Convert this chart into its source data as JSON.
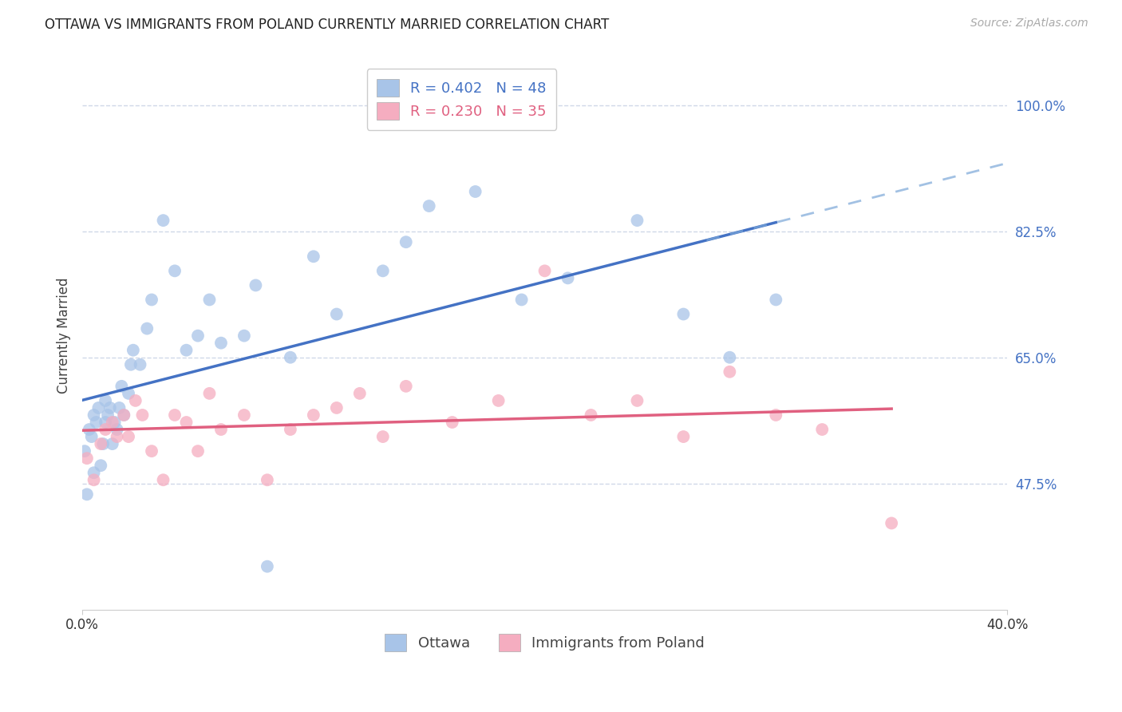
{
  "title": "OTTAWA VS IMMIGRANTS FROM POLAND CURRENTLY MARRIED CORRELATION CHART",
  "source": "Source: ZipAtlas.com",
  "ylabel": "Currently Married",
  "yticks": [
    47.5,
    65.0,
    82.5,
    100.0
  ],
  "ytick_labels": [
    "47.5%",
    "65.0%",
    "82.5%",
    "100.0%"
  ],
  "xlim": [
    0.0,
    40.0
  ],
  "ylim": [
    30.0,
    106.0
  ],
  "legend1_label": "R = 0.402   N = 48",
  "legend2_label": "R = 0.230   N = 35",
  "legend_label1": "Ottawa",
  "legend_label2": "Immigrants from Poland",
  "ottawa_color": "#a8c4e8",
  "poland_color": "#f5adc0",
  "regression_blue": "#4472c4",
  "regression_pink": "#e06080",
  "dashed_blue": "#7ba7d8",
  "background_color": "#ffffff",
  "ottawa_x": [
    0.1,
    0.2,
    0.3,
    0.4,
    0.5,
    0.5,
    0.6,
    0.7,
    0.8,
    0.9,
    1.0,
    1.0,
    1.1,
    1.2,
    1.3,
    1.4,
    1.5,
    1.6,
    1.7,
    1.8,
    2.0,
    2.1,
    2.2,
    2.5,
    2.8,
    3.0,
    3.5,
    4.0,
    4.5,
    5.0,
    5.5,
    6.0,
    7.0,
    7.5,
    8.0,
    9.0,
    10.0,
    11.0,
    13.0,
    14.0,
    15.0,
    17.0,
    19.0,
    21.0,
    24.0,
    26.0,
    28.0,
    30.0
  ],
  "ottawa_y": [
    52.0,
    46.0,
    55.0,
    54.0,
    57.0,
    49.0,
    56.0,
    58.0,
    50.0,
    53.0,
    56.0,
    59.0,
    57.0,
    58.0,
    53.0,
    56.0,
    55.0,
    58.0,
    61.0,
    57.0,
    60.0,
    64.0,
    66.0,
    64.0,
    69.0,
    73.0,
    84.0,
    77.0,
    66.0,
    68.0,
    73.0,
    67.0,
    68.0,
    75.0,
    36.0,
    65.0,
    79.0,
    71.0,
    77.0,
    81.0,
    86.0,
    88.0,
    73.0,
    76.0,
    84.0,
    71.0,
    65.0,
    73.0
  ],
  "poland_x": [
    0.2,
    0.5,
    0.8,
    1.0,
    1.3,
    1.5,
    1.8,
    2.0,
    2.3,
    2.6,
    3.0,
    3.5,
    4.0,
    4.5,
    5.0,
    5.5,
    6.0,
    7.0,
    8.0,
    9.0,
    10.0,
    11.0,
    12.0,
    13.0,
    14.0,
    16.0,
    18.0,
    20.0,
    22.0,
    24.0,
    26.0,
    28.0,
    30.0,
    32.0,
    35.0
  ],
  "poland_y": [
    51.0,
    48.0,
    53.0,
    55.0,
    56.0,
    54.0,
    57.0,
    54.0,
    59.0,
    57.0,
    52.0,
    48.0,
    57.0,
    56.0,
    52.0,
    60.0,
    55.0,
    57.0,
    48.0,
    55.0,
    57.0,
    58.0,
    60.0,
    54.0,
    61.0,
    56.0,
    59.0,
    77.0,
    57.0,
    59.0,
    54.0,
    63.0,
    57.0,
    55.0,
    42.0
  ],
  "grid_color": "#d0d8e8",
  "tick_color": "#4472c4",
  "title_fontsize": 12,
  "axis_label_fontsize": 12,
  "tick_fontsize": 12,
  "legend_fontsize": 13
}
